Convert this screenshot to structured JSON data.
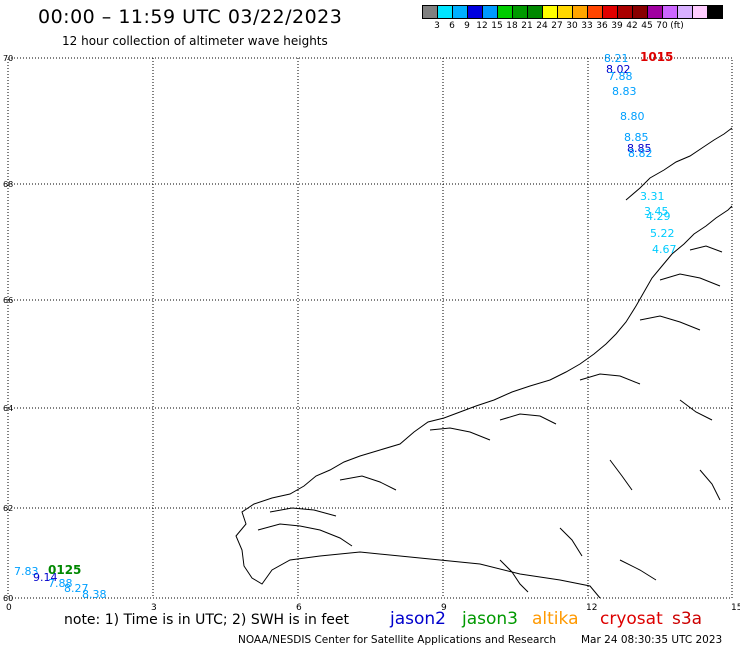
{
  "header": {
    "title": "00:00 – 11:59 UTC 03/22/2023",
    "subtitle": "12 hour collection of altimeter wave heights"
  },
  "colorbar": {
    "colors": [
      "#808080",
      "#00e5ff",
      "#00b0ff",
      "#0000e0",
      "#009aff",
      "#00cc00",
      "#009900",
      "#008800",
      "#ffff00",
      "#ffd700",
      "#ffa500",
      "#ff4500",
      "#e00000",
      "#aa0000",
      "#880000",
      "#a000a0",
      "#cc66ff",
      "#d8b0ff",
      "#ffccff",
      "#000000"
    ],
    "tick_labels": [
      "3",
      "6",
      "9",
      "12",
      "15",
      "18",
      "21",
      "24",
      "27",
      "30",
      "33",
      "36",
      "39",
      "42",
      "45",
      "70",
      "(ft)"
    ]
  },
  "axes": {
    "y_ticks": [
      "70",
      "68",
      "66",
      "64",
      "62",
      "60"
    ],
    "x_ticks": [
      "0",
      "3",
      "6",
      "9",
      "12",
      "15"
    ]
  },
  "observations": [
    {
      "text": "8.21",
      "color": "#00a0ff"
    },
    {
      "text": "8.02",
      "color": "#0000cc"
    },
    {
      "text": "7.88",
      "color": "#00a0ff"
    },
    {
      "text": "8.83",
      "color": "#00a0ff"
    },
    {
      "text": "8.80",
      "color": "#00a0ff"
    },
    {
      "text": "8.85",
      "color": "#00a0ff"
    },
    {
      "text": "8.85",
      "color": "#0000cc"
    },
    {
      "text": "8.82",
      "color": "#00a0ff"
    },
    {
      "text": "3.31",
      "color": "#00ccff"
    },
    {
      "text": "3.45",
      "color": "#00ccff"
    },
    {
      "text": "4.29",
      "color": "#00ccff"
    },
    {
      "text": "5.22",
      "color": "#00ccff"
    },
    {
      "text": "4.67",
      "color": "#00ccff"
    },
    {
      "text": "7.83",
      "color": "#00a0ff"
    },
    {
      "text": "9.14",
      "color": "#0000cc"
    },
    {
      "text": "7.88",
      "color": "#00a0ff"
    },
    {
      "text": "8.27",
      "color": "#00a0ff"
    },
    {
      "text": "8.38",
      "color": "#00a0ff"
    }
  ],
  "passes": [
    {
      "text": "1015",
      "color": "#dd0000"
    },
    {
      "text": "0125",
      "color": "#008800"
    }
  ],
  "footer": {
    "note": "note:  1) Time is in UTC;  2) SWH is in feet",
    "satellites": [
      {
        "name": "jason2",
        "color": "#0000cc"
      },
      {
        "name": "jason3",
        "color": "#009900"
      },
      {
        "name": "altika",
        "color": "#ff9900"
      },
      {
        "name": "cryosat",
        "color": "#dd0000"
      },
      {
        "name": "s3a",
        "color": "#cc0000"
      }
    ],
    "credit": "NOAA/NESDIS Center for Satellite Applications and Research",
    "timestamp": "Mar 24 08:30:35 UTC 2023"
  }
}
